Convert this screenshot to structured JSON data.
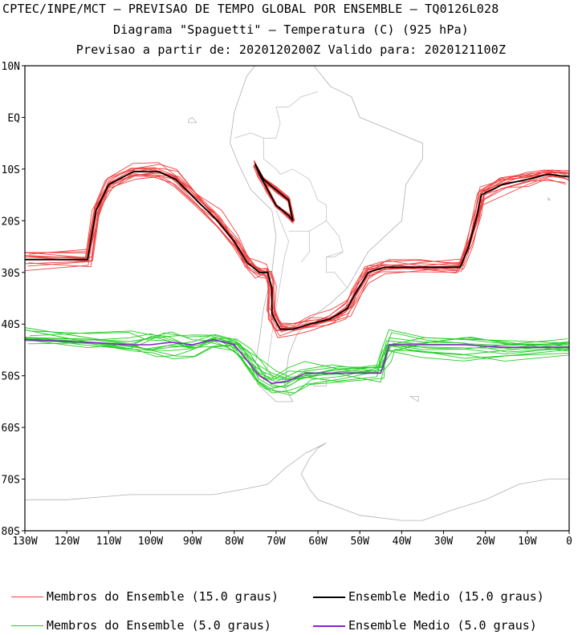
{
  "header": {
    "line1": "CPTEC/INPE/MCT — PREVISAO DE TEMPO GLOBAL POR ENSEMBLE — TQ0126L028",
    "line2": "Diagrama \"Spaguetti\" — Temperatura (C) (925 hPa)",
    "line3": "Previsao a partir de: 2020120200Z  Valido para: 2020121100Z"
  },
  "axes": {
    "lat_labels": [
      "10N",
      "EQ",
      "10S",
      "20S",
      "30S",
      "40S",
      "50S",
      "60S",
      "70S",
      "80S"
    ],
    "lon_labels": [
      "130W",
      "120W",
      "110W",
      "100W",
      "90W",
      "80W",
      "70W",
      "60W",
      "50W",
      "40W",
      "30W",
      "20W",
      "10W",
      "0"
    ]
  },
  "legend": {
    "members_15": "Membros do Ensemble (15.0 graus)",
    "mean_15": "Ensemble Medio (15.0 graus)",
    "members_5": "Membros do Ensemble (5.0 graus)",
    "mean_5": "Ensemble Medio (5.0 graus)"
  },
  "colors": {
    "members_15": "#f04040",
    "mean_15": "#000000",
    "members_5": "#22cc22",
    "mean_5": "#8822cc",
    "coast": "#b0b0b0"
  },
  "map_data": {
    "lon_range": [
      -130,
      0
    ],
    "lat_range": [
      -80,
      10
    ],
    "contour_15_mean": [
      [
        -130,
        -27.5
      ],
      [
        -115,
        -27.5
      ],
      [
        -113,
        -18
      ],
      [
        -110,
        -13
      ],
      [
        -104,
        -10.5
      ],
      [
        -98,
        -10.5
      ],
      [
        -94,
        -12
      ],
      [
        -89,
        -16
      ],
      [
        -84,
        -20
      ],
      [
        -80,
        -24
      ],
      [
        -77,
        -28
      ],
      [
        -74,
        -30
      ],
      [
        -72,
        -30
      ],
      [
        -71,
        -33
      ],
      [
        -71,
        -38
      ],
      [
        -69,
        -41
      ],
      [
        -66,
        -41
      ],
      [
        -62,
        -40
      ],
      [
        -57,
        -39
      ],
      [
        -53,
        -37
      ],
      [
        -51,
        -34
      ],
      [
        -48,
        -30
      ],
      [
        -44,
        -29
      ],
      [
        -36,
        -29
      ],
      [
        -26,
        -29
      ],
      [
        -24,
        -25
      ],
      [
        -22,
        -19
      ],
      [
        -21,
        -15
      ],
      [
        -16,
        -13
      ],
      [
        -10,
        -12
      ],
      [
        -5,
        -11
      ],
      [
        0,
        -11.5
      ]
    ],
    "contour_15_andes": [
      [
        -75,
        -9
      ],
      [
        -73,
        -12
      ],
      [
        -70,
        -14
      ],
      [
        -67,
        -16
      ],
      [
        -66,
        -20
      ],
      [
        -67,
        -19
      ],
      [
        -70,
        -17
      ],
      [
        -72,
        -14
      ],
      [
        -74,
        -11
      ],
      [
        -75,
        -9
      ]
    ],
    "contour_5_mean": [
      [
        -130,
        -43
      ],
      [
        -115,
        -43.5
      ],
      [
        -105,
        -44
      ],
      [
        -100,
        -44
      ],
      [
        -95,
        -43.5
      ],
      [
        -90,
        -44
      ],
      [
        -85,
        -43
      ],
      [
        -80,
        -44
      ],
      [
        -77,
        -47
      ],
      [
        -74,
        -50
      ],
      [
        -71,
        -51.5
      ],
      [
        -67,
        -51
      ],
      [
        -63,
        -49.5
      ],
      [
        -55,
        -49.5
      ],
      [
        -45,
        -49.5
      ],
      [
        -44,
        -47
      ],
      [
        -43,
        -44
      ],
      [
        -35,
        -44
      ],
      [
        -25,
        -44
      ],
      [
        -15,
        -44.5
      ],
      [
        0,
        -44.5
      ]
    ]
  }
}
